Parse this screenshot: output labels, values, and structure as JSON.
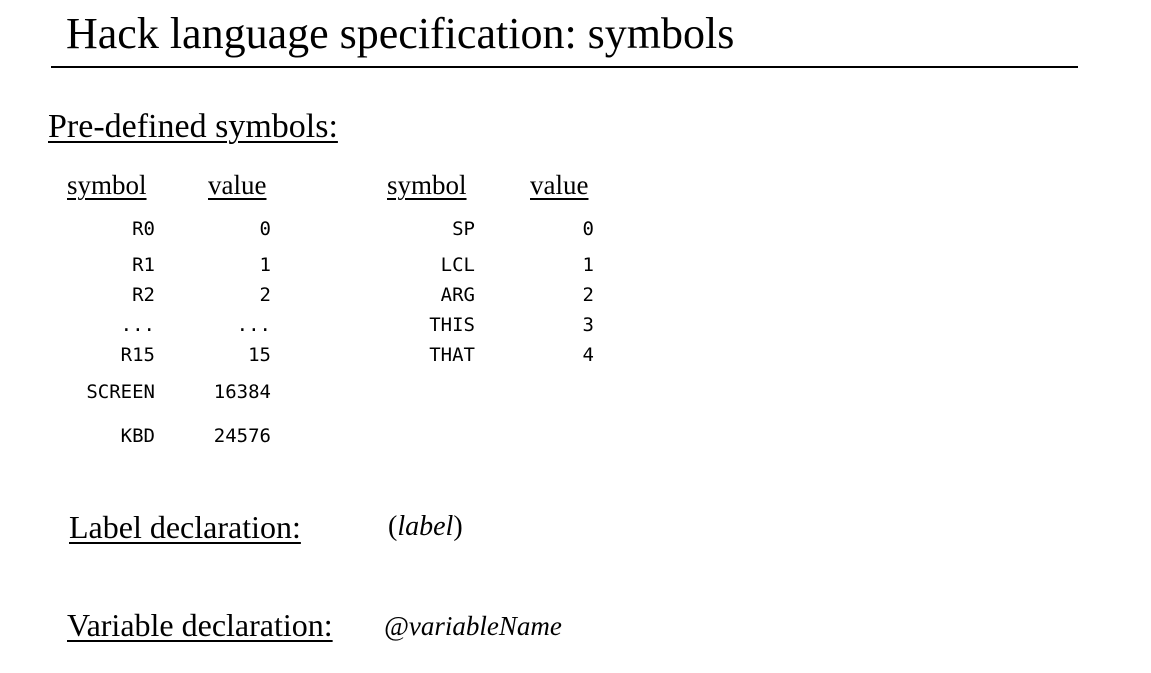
{
  "title": "Hack language specification: symbols",
  "predefined": {
    "heading": "Pre-defined symbols:",
    "left_table": {
      "symbol_header": "symbol",
      "value_header": "value",
      "rows": [
        {
          "symbol": "R0",
          "value": "0"
        },
        {
          "symbol": "R1",
          "value": "1"
        },
        {
          "symbol": "R2",
          "value": "2"
        },
        {
          "symbol": "...",
          "value": "..."
        },
        {
          "symbol": "R15",
          "value": "15"
        },
        {
          "symbol": "SCREEN",
          "value": "16384"
        },
        {
          "symbol": "KBD",
          "value": "24576"
        }
      ]
    },
    "right_table": {
      "symbol_header": "symbol",
      "value_header": "value",
      "rows": [
        {
          "symbol": "SP",
          "value": "0"
        },
        {
          "symbol": "LCL",
          "value": "1"
        },
        {
          "symbol": "ARG",
          "value": "2"
        },
        {
          "symbol": "THIS",
          "value": "3"
        },
        {
          "symbol": "THAT",
          "value": "4"
        }
      ]
    }
  },
  "label_declaration": {
    "heading": "Label declaration:",
    "open": "(",
    "syntax": "label",
    "close": ")"
  },
  "variable_declaration": {
    "heading": "Variable declaration:",
    "syntax": "@variableName"
  }
}
